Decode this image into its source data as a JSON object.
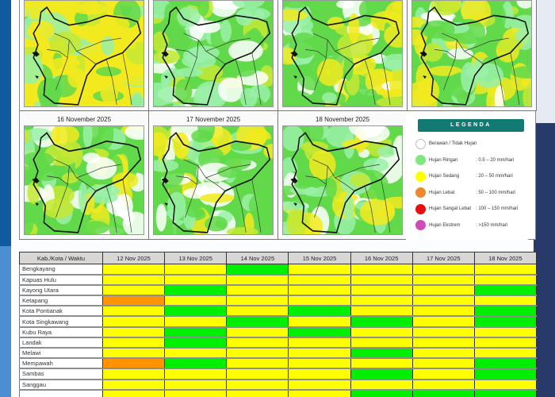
{
  "colors": {
    "page_left_band": "#0f5aa0",
    "page_right_band": "#273a6a",
    "legend_header_bg": "#127a72",
    "Y": "#ffff00",
    "G": "#00ee00",
    "O": "#ff9300",
    "map_yellow": "#f2ea1e",
    "map_green": "#62d94a",
    "map_light_green": "#9af0a8"
  },
  "maps": {
    "top_row": [
      {
        "label": "",
        "dominant": "yellow"
      },
      {
        "label": "",
        "dominant": "green-white"
      },
      {
        "label": "",
        "dominant": "green"
      },
      {
        "label": "",
        "dominant": "green"
      }
    ],
    "bottom_row": [
      {
        "label": "16 November 2025",
        "dominant": "green"
      },
      {
        "label": "17 November 2025",
        "dominant": "green"
      },
      {
        "label": "18 November 2025",
        "dominant": "green"
      }
    ]
  },
  "legend": {
    "title": "LEGENDA",
    "items": [
      {
        "name": "Berawan / Tidak Hujan",
        "range": "",
        "color": "#ffffff",
        "icon": "circle-white"
      },
      {
        "name": "Hujan Ringan",
        "range": ": 0.5 – 20 mm/hari",
        "color": "#7ee87e",
        "icon": "circle-light-green"
      },
      {
        "name": "Hujan Sedang",
        "range": ": 20 – 50 mm/hari",
        "color": "#ffff00",
        "icon": "circle-yellow"
      },
      {
        "name": "Hujan Lebat",
        "range": ": 50 – 100 mm/hari",
        "color": "#ea8a2c",
        "icon": "circle-orange"
      },
      {
        "name": "Hujan Sangat Lebat",
        "range": ": 100 – 150 mm/hari",
        "color": "#e80f0f",
        "icon": "circle-red"
      },
      {
        "name": "Hujan Ekstrem",
        "range": ": >150 mm/hari",
        "color": "#d04ab8",
        "icon": "circle-magenta"
      }
    ]
  },
  "table": {
    "header_label": "Kab./Kota / Waktu",
    "columns": [
      "12 Nov 2025",
      "13 Nov 2025",
      "14 Nov 2025",
      "15 Nov 2025",
      "16 Nov 2025",
      "17 Nov 2025",
      "18 Nov 2025"
    ],
    "rows": [
      {
        "name": "Bengkayang",
        "cells": [
          "Y",
          "Y",
          "G",
          "Y",
          "Y",
          "Y",
          "Y"
        ]
      },
      {
        "name": "Kapuas Hulu",
        "cells": [
          "Y",
          "Y",
          "Y",
          "Y",
          "Y",
          "Y",
          "Y"
        ]
      },
      {
        "name": "Kayong Utara",
        "cells": [
          "Y",
          "G",
          "Y",
          "Y",
          "Y",
          "Y",
          "G"
        ]
      },
      {
        "name": "Ketapang",
        "cells": [
          "O",
          "Y",
          "Y",
          "Y",
          "Y",
          "Y",
          "Y"
        ]
      },
      {
        "name": "Kota Pontianak",
        "cells": [
          "Y",
          "G",
          "Y",
          "G",
          "Y",
          "Y",
          "G"
        ]
      },
      {
        "name": "Kota Singkawang",
        "cells": [
          "Y",
          "Y",
          "G",
          "Y",
          "G",
          "Y",
          "G"
        ]
      },
      {
        "name": "Kubu Raya",
        "cells": [
          "Y",
          "G",
          "Y",
          "G",
          "Y",
          "Y",
          "Y"
        ]
      },
      {
        "name": "Landak",
        "cells": [
          "Y",
          "G",
          "Y",
          "Y",
          "Y",
          "Y",
          "Y"
        ]
      },
      {
        "name": "Melawi",
        "cells": [
          "Y",
          "Y",
          "Y",
          "Y",
          "G",
          "Y",
          "Y"
        ]
      },
      {
        "name": "Mempawah",
        "cells": [
          "O",
          "G",
          "Y",
          "Y",
          "Y",
          "Y",
          "G"
        ]
      },
      {
        "name": "Sambas",
        "cells": [
          "Y",
          "Y",
          "Y",
          "Y",
          "G",
          "Y",
          "G"
        ]
      },
      {
        "name": "Sanggau",
        "cells": [
          "Y",
          "Y",
          "Y",
          "Y",
          "Y",
          "Y",
          "Y"
        ]
      },
      {
        "name": "",
        "cells": [
          "Y",
          "Y",
          "Y",
          "Y",
          "G",
          "G",
          "G"
        ]
      }
    ]
  }
}
